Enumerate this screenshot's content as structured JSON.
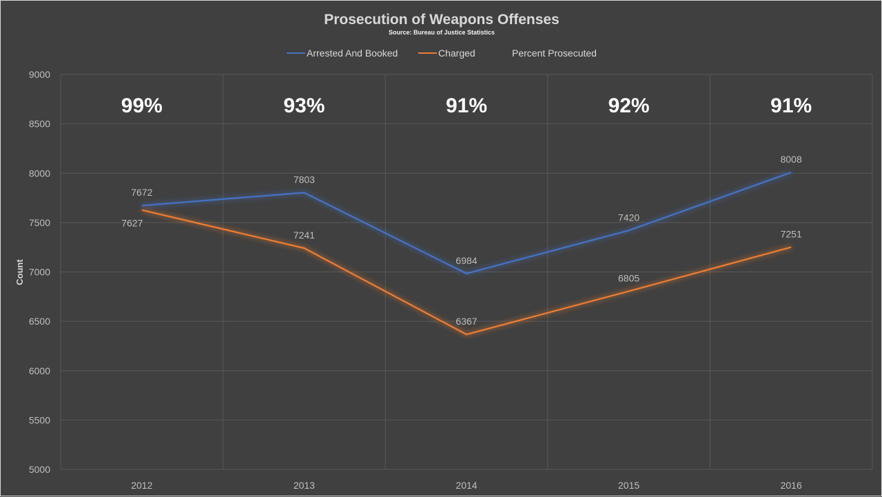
{
  "chart_data": {
    "type": "line",
    "title": "Prosecution of Weapons Offenses",
    "subtitle": "Source: Bureau of Justice Statistics",
    "xlabel": "",
    "ylabel": "Count",
    "categories": [
      "2012",
      "2013",
      "2014",
      "2015",
      "2016"
    ],
    "ylim": [
      5000,
      9000
    ],
    "yticks": [
      5000,
      5500,
      6000,
      6500,
      7000,
      7500,
      8000,
      8500,
      9000
    ],
    "grid": true,
    "legend_position": "top",
    "series": [
      {
        "name": "Arrested And Booked",
        "color": "#4472C4",
        "values": [
          7672,
          7803,
          6984,
          7420,
          8008
        ]
      },
      {
        "name": "Charged",
        "color": "#ED7D31",
        "values": [
          7627,
          7241,
          6367,
          6805,
          7251
        ]
      },
      {
        "name": "Percent Prosecuted",
        "labels": [
          "99%",
          "93%",
          "91%",
          "92%",
          "91%"
        ]
      }
    ],
    "background": "#404040"
  }
}
